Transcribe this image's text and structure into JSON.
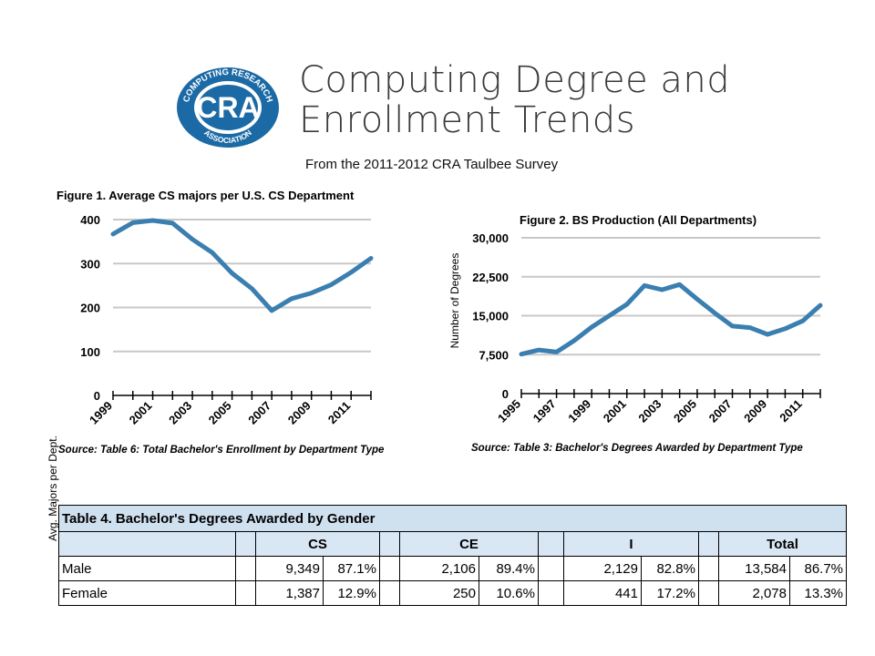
{
  "header": {
    "logo_text": "CRA",
    "logo_top_arc": "COMPUTING RESEARCH",
    "logo_bottom_arc": "ASSOCIATION",
    "title_line1": "Computing Degree and",
    "title_line2": "Enrollment Trends",
    "subtitle": "From the 2011-2012 CRA Taulbee Survey"
  },
  "colors": {
    "line": "#3a7fb0",
    "table_header": "#cfe0ef",
    "grid": "#c8c8c8"
  },
  "chart_data": [
    {
      "type": "line",
      "title": "Figure 1. Average CS majors per U.S. CS Department",
      "ylabel": "Avg. Majors per Dept.",
      "xlabel": "",
      "source": "Source: Table 6: Total Bachelor's Enrollment by Department Type",
      "x": [
        1999,
        2000,
        2001,
        2002,
        2003,
        2004,
        2005,
        2006,
        2007,
        2008,
        2009,
        2010,
        2011,
        2012
      ],
      "values": [
        367,
        393,
        398,
        392,
        355,
        325,
        278,
        243,
        193,
        220,
        233,
        252,
        280,
        312
      ],
      "xlim": [
        1999,
        2012
      ],
      "ylim": [
        0,
        400
      ],
      "yticks": [
        0,
        100,
        200,
        300,
        400
      ],
      "ytick_labels": [
        "0",
        "100",
        "200",
        "300",
        "400"
      ],
      "xtick_labels": [
        "1999",
        "2001",
        "2003",
        "2005",
        "2007",
        "2009",
        "2011"
      ],
      "grid": true
    },
    {
      "type": "line",
      "title": "Figure 2. BS Production (All Departments)",
      "ylabel": "Number of Degrees",
      "xlabel": "",
      "source": "Source: Table 3: Bachelor's Degrees Awarded by Department Type",
      "x": [
        1995,
        1996,
        1997,
        1998,
        1999,
        2000,
        2001,
        2002,
        2003,
        2004,
        2005,
        2006,
        2007,
        2008,
        2009,
        2010,
        2011,
        2012
      ],
      "values": [
        7600,
        8400,
        8000,
        10200,
        12800,
        15000,
        17200,
        20800,
        20000,
        21000,
        18200,
        15500,
        13000,
        12700,
        11400,
        12500,
        14000,
        17000
      ],
      "xlim": [
        1995,
        2012
      ],
      "ylim": [
        0,
        30000
      ],
      "yticks": [
        0,
        7500,
        15000,
        22500,
        30000
      ],
      "ytick_labels": [
        "0",
        "7,500",
        "15,000",
        "22,500",
        "30,000"
      ],
      "xtick_labels": [
        "1995",
        "1997",
        "1999",
        "2001",
        "2003",
        "2005",
        "2007",
        "2009",
        "2011"
      ],
      "grid": true
    }
  ],
  "table": {
    "caption": "Table 4. Bachelor's Degrees Awarded by Gender",
    "groups": [
      "CS",
      "CE",
      "I",
      "Total"
    ],
    "rows": [
      {
        "label": "Male",
        "values": [
          "9,349",
          "87.1%",
          "2,106",
          "89.4%",
          "2,129",
          "82.8%",
          "13,584",
          "86.7%"
        ]
      },
      {
        "label": "Female",
        "values": [
          "1,387",
          "12.9%",
          "250",
          "10.6%",
          "441",
          "17.2%",
          "2,078",
          "13.3%"
        ]
      }
    ]
  }
}
